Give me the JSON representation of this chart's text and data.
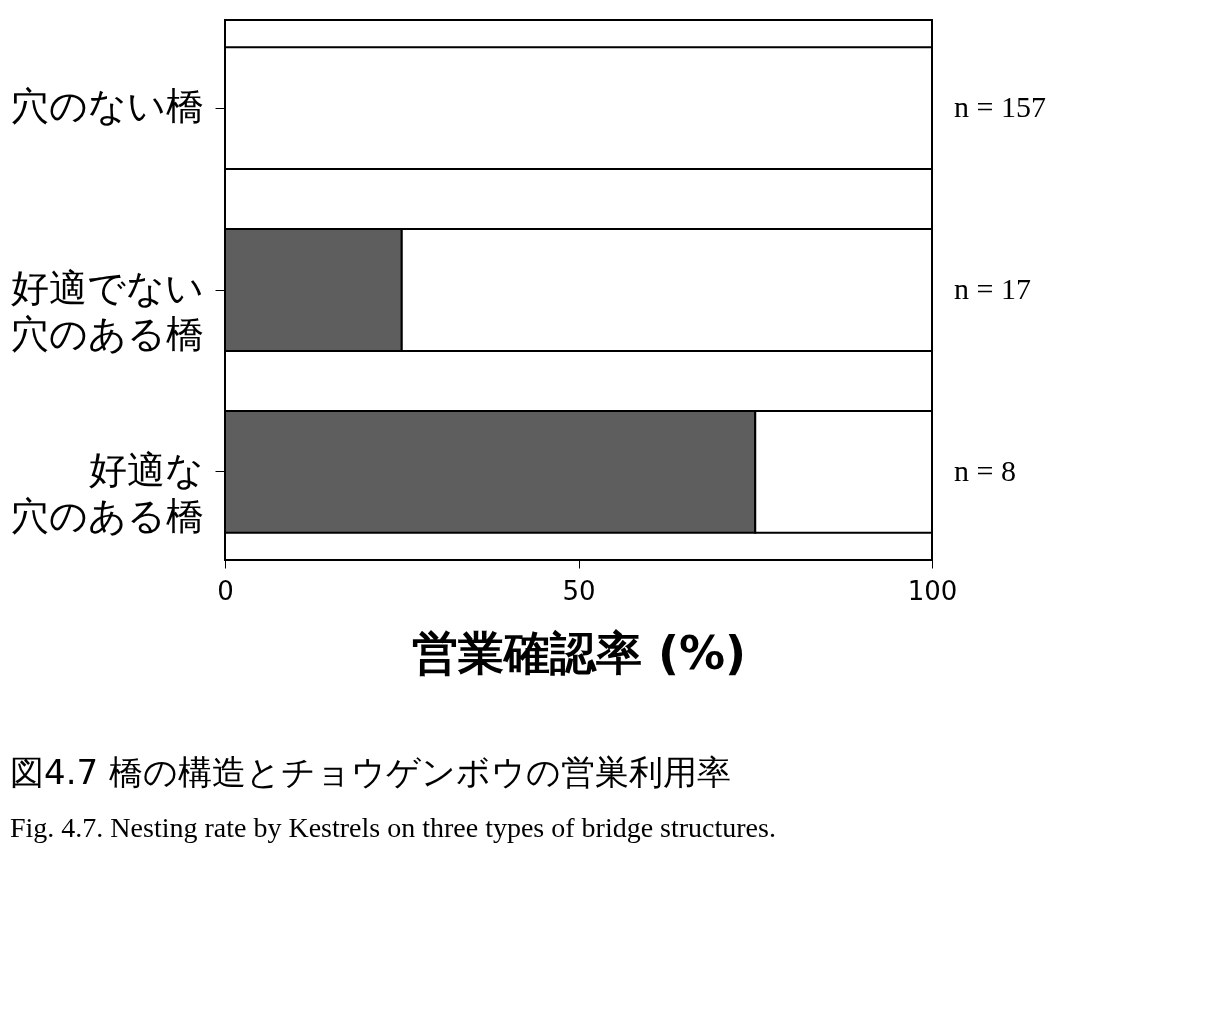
{
  "chart_data": {
    "type": "bar",
    "orientation": "horizontal",
    "stacked": true,
    "categories": [
      "穴のない橋",
      "好適でない穴のある橋",
      "好適な穴のある橋"
    ],
    "series": [
      {
        "color": "#5e5e5e",
        "values": [
          0,
          25,
          75
        ]
      },
      {
        "color": "#ffffff",
        "values": [
          100,
          75,
          25
        ]
      }
    ],
    "xlim": [
      0,
      100
    ],
    "xticks": [
      0,
      50,
      100
    ],
    "xlabel": "営業確認率 (%)",
    "title": "図4.7  橋の構造とチョウゲンボウの営巣利用率",
    "subtitle": "Fig. 4.7.  Nesting rate by Kestrels on three types of bridge structures.",
    "annotations": [
      "n = 157",
      "n = 17",
      "n = 8"
    ],
    "grid": false
  }
}
